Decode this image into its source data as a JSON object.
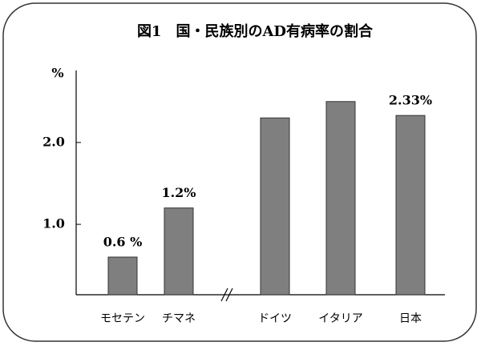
{
  "chart_data": {
    "type": "bar",
    "title": "図1　国・民族別のAD有病率の割合",
    "y_label": "%",
    "categories": [
      "モセテン",
      "チマネ",
      "ドイツ",
      "イタリア",
      "日本"
    ],
    "values": [
      0.6,
      1.2,
      2.3,
      2.5,
      2.33
    ],
    "value_labels": [
      "0.6 %",
      "1.2%",
      null,
      null,
      "2.33%"
    ],
    "color": "#7f7f7f",
    "ylim": [
      0.14,
      2.86
    ],
    "yticks": [
      {
        "value": 1,
        "label": "1.0"
      },
      {
        "value": 2,
        "label": "2.0"
      }
    ]
  }
}
